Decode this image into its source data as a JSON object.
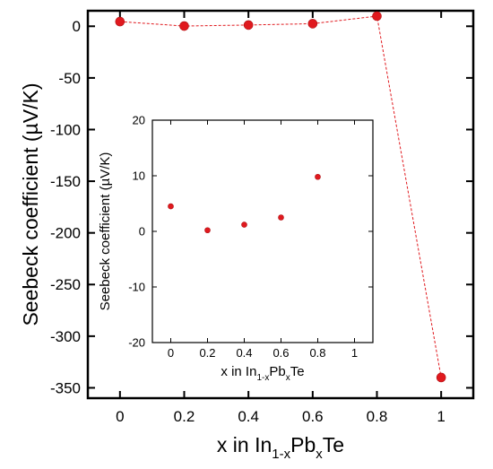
{
  "chart_data": [
    {
      "type": "line",
      "name": "main",
      "xlabel": {
        "base": "x in In",
        "sub1": "1-x",
        "mid": "Pb",
        "sub2": "x",
        "end": "Te"
      },
      "ylabel": "Seebeck coefficient (µV/K)",
      "xlim": [
        -0.1,
        1.1
      ],
      "ylim": [
        -360,
        15
      ],
      "xticks": [
        0,
        0.2,
        0.4,
        0.6,
        0.8,
        1
      ],
      "xtick_labels": [
        "0",
        "0.2",
        "0.4",
        "0.6",
        "0.8",
        "1"
      ],
      "yticks": [
        0,
        -50,
        -100,
        -150,
        -200,
        -250,
        -300,
        -350
      ],
      "ytick_labels": [
        "0",
        "-50",
        "-100",
        "-150",
        "-200",
        "-250",
        "-300",
        "-350"
      ],
      "grid": false,
      "series": [
        {
          "x": [
            0,
            0.2,
            0.4,
            0.6,
            0.8,
            1.0
          ],
          "y": [
            4.5,
            0.2,
            1.2,
            2.5,
            9.8,
            -340
          ],
          "color": "#e0191e",
          "line": "dashed",
          "marker": "circle"
        }
      ]
    },
    {
      "type": "scatter",
      "name": "inset",
      "xlabel": {
        "base": "x in In",
        "sub1": "1-x",
        "mid": "Pb",
        "sub2": "x",
        "end": "Te"
      },
      "ylabel": "Seebeck coefficient (µV/K)",
      "xlim": [
        -0.1,
        1.1
      ],
      "ylim": [
        -20,
        20
      ],
      "xticks": [
        0,
        0.2,
        0.4,
        0.6,
        0.8,
        1
      ],
      "xtick_labels": [
        "0",
        "0.2",
        "0.4",
        "0.6",
        "0.8",
        "1"
      ],
      "yticks": [
        20,
        10,
        0,
        -10,
        -20
      ],
      "ytick_labels": [
        "20",
        "10",
        "0",
        "-10",
        "-20"
      ],
      "grid": false,
      "series": [
        {
          "x": [
            0,
            0.2,
            0.4,
            0.6,
            0.8
          ],
          "y": [
            4.5,
            0.2,
            1.2,
            2.5,
            9.8
          ],
          "color": "#e0191e",
          "marker": "circle"
        }
      ]
    }
  ]
}
